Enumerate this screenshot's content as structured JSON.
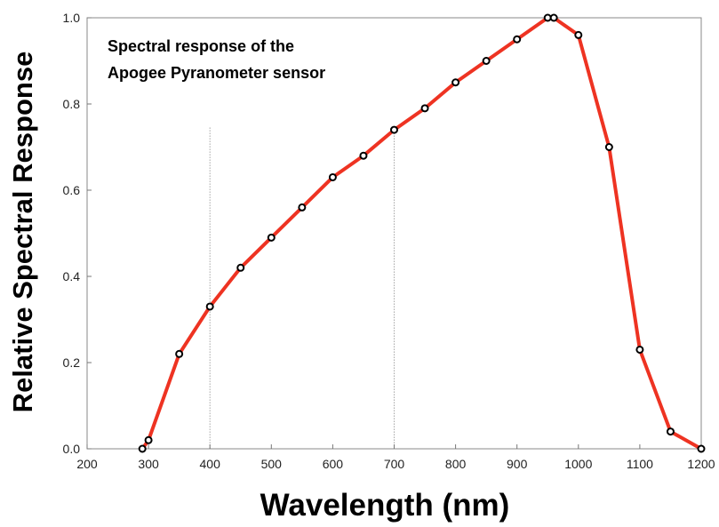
{
  "chart_data": {
    "type": "line",
    "title_lines": [
      "Spectral response of the",
      "Apogee Pyranometer sensor"
    ],
    "xlabel": "Wavelength (nm)",
    "ylabel": "Relative Spectral Response",
    "xlim": [
      200,
      1200
    ],
    "ylim": [
      0,
      1.0
    ],
    "x_ticks": [
      200,
      300,
      400,
      500,
      600,
      700,
      800,
      900,
      1000,
      1100,
      1200
    ],
    "y_ticks": [
      "0.0",
      "0.2",
      "0.4",
      "0.6",
      "0.8",
      "1.0"
    ],
    "reference_lines_x": [
      400,
      700
    ],
    "line_color": "#ee3322",
    "marker_color": "#000000",
    "series": [
      {
        "x": [
          290,
          300,
          350,
          400,
          450,
          500,
          550,
          600,
          650,
          700,
          750,
          800,
          850,
          900,
          950,
          960,
          1000,
          1050,
          1100,
          1150,
          1200
        ],
        "y": [
          0.0,
          0.02,
          0.22,
          0.33,
          0.42,
          0.49,
          0.56,
          0.63,
          0.68,
          0.74,
          0.79,
          0.85,
          0.9,
          0.95,
          1.0,
          1.0,
          0.96,
          0.7,
          0.23,
          0.04,
          0.0
        ]
      }
    ]
  }
}
